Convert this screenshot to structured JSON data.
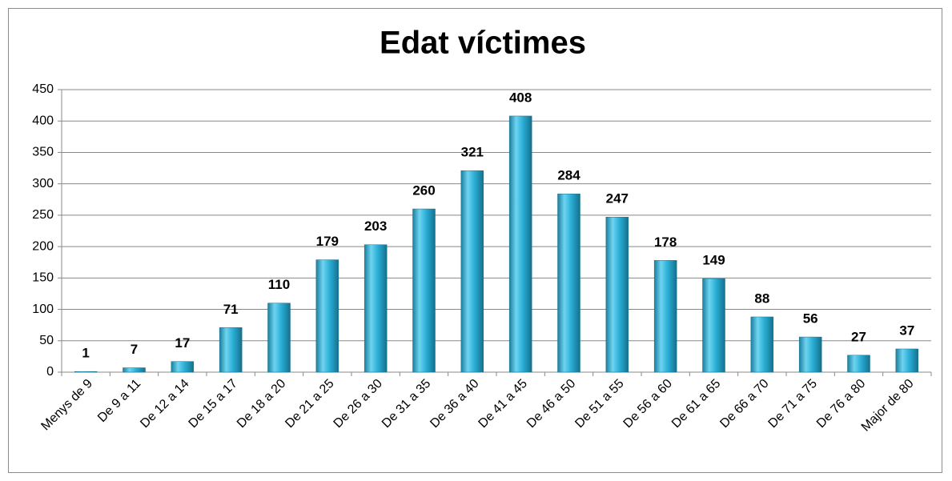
{
  "chart_data": {
    "type": "bar",
    "title": "Edat víctimes",
    "categories": [
      "Menys de 9",
      "De 9 a 11",
      "De 12 a 14",
      "De 15 a 17",
      "De 18 a 20",
      "De 21 a 25",
      "De 26 a 30",
      "De 31 a 35",
      "De 36 a 40",
      "De 41 a 45",
      "De 46 a 50",
      "De 51 a 55",
      "De 56 a 60",
      "De 61 a 65",
      "De 66 a 70",
      "De 71 a 75",
      "De 76 a 80",
      "Major de 80"
    ],
    "values": [
      1,
      7,
      17,
      71,
      110,
      179,
      203,
      260,
      321,
      408,
      284,
      247,
      178,
      149,
      88,
      56,
      27,
      37
    ],
    "color": "#2aaed6",
    "ylim": [
      0,
      450
    ],
    "yticks": [
      0,
      50,
      100,
      150,
      200,
      250,
      300,
      350,
      400,
      450
    ],
    "grid": true
  }
}
